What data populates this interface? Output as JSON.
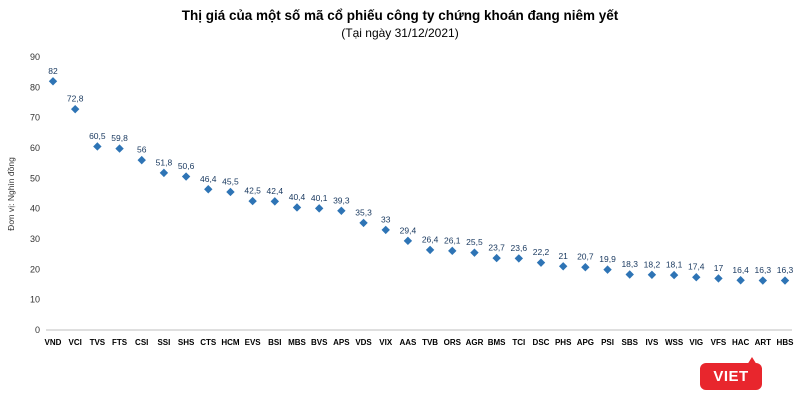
{
  "chart_data": {
    "type": "scatter",
    "title": "Thị giá của một số mã cổ phiếu công ty chứng khoán đang niêm yết",
    "subtitle": "(Tại ngày 31/12/2021)",
    "ylabel": "Đơn vị: Nghìn đồng",
    "xlabel": "",
    "ylim": [
      0,
      90
    ],
    "ytick_step": 10,
    "grid": false,
    "legend_position": "none",
    "marker_shape": "diamond",
    "marker_color": "#2e74b5",
    "label_color": "#17375e",
    "axis_color": "#bfbfbf",
    "tick_text_color": "#333333",
    "categories": [
      "VND",
      "VCI",
      "TVS",
      "FTS",
      "CSI",
      "SSI",
      "SHS",
      "CTS",
      "HCM",
      "EVS",
      "BSI",
      "MBS",
      "BVS",
      "APS",
      "VDS",
      "VIX",
      "AAS",
      "TVB",
      "ORS",
      "AGR",
      "BMS",
      "TCI",
      "DSC",
      "PHS",
      "APG",
      "PSI",
      "SBS",
      "IVS",
      "WSS",
      "VIG",
      "VFS",
      "HAC",
      "ART",
      "HBS"
    ],
    "values": [
      82,
      72.8,
      60.5,
      59.8,
      56,
      51.8,
      50.6,
      46.4,
      45.5,
      42.5,
      42.4,
      40.4,
      40.1,
      39.3,
      35.3,
      33,
      29.4,
      26.4,
      26.1,
      25.5,
      23.7,
      23.6,
      22.2,
      21,
      20.7,
      19.9,
      18.3,
      18.2,
      18.1,
      17.4,
      17,
      16.4,
      16.3,
      16.3
    ],
    "value_labels": [
      "82",
      "72,8",
      "60,5",
      "59,8",
      "56",
      "51,8",
      "50,6",
      "46,4",
      "45,5",
      "42,5",
      "42,4",
      "40,4",
      "40,1",
      "39,3",
      "35,3",
      "33",
      "29,4",
      "26,4",
      "26,1",
      "25,5",
      "23,7",
      "23,6",
      "22,2",
      "21",
      "20,7",
      "19,9",
      "18,3",
      "18,2",
      "18,1",
      "17,4",
      "17",
      "16,4",
      "16,3",
      "16,3"
    ],
    "ytick_labels": [
      "0",
      "10",
      "20",
      "30",
      "40",
      "50",
      "60",
      "70",
      "80",
      "90"
    ]
  },
  "branding": {
    "logo_text": "VIET",
    "logo_color": "#e8262d"
  }
}
